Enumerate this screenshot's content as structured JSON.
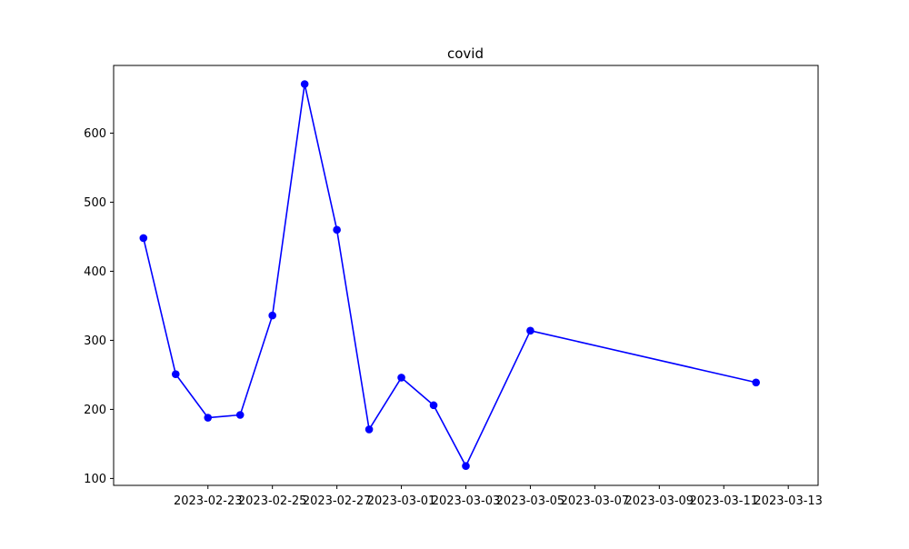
{
  "chart_data": {
    "type": "line",
    "title": "covid",
    "xlabel": "",
    "ylabel": "",
    "x_axis_type": "date",
    "xlim": [
      "2023-02-20T01:48:00",
      "2023-03-13T22:12:00"
    ],
    "ylim": [
      90,
      698
    ],
    "x_ticks": [
      "2023-02-23",
      "2023-02-25",
      "2023-02-27",
      "2023-03-01",
      "2023-03-03",
      "2023-03-05",
      "2023-03-07",
      "2023-03-09",
      "2023-03-11",
      "2023-03-13"
    ],
    "y_ticks": [
      100,
      200,
      300,
      400,
      500,
      600
    ],
    "grid": false,
    "series": [
      {
        "color": "#0000ff",
        "marker": "circle",
        "points": [
          {
            "x": "2023-02-21",
            "y": 448
          },
          {
            "x": "2023-02-22",
            "y": 251
          },
          {
            "x": "2023-02-23",
            "y": 188
          },
          {
            "x": "2023-02-24",
            "y": 192
          },
          {
            "x": "2023-02-25",
            "y": 336
          },
          {
            "x": "2023-02-26",
            "y": 671
          },
          {
            "x": "2023-02-27",
            "y": 460
          },
          {
            "x": "2023-02-28",
            "y": 171
          },
          {
            "x": "2023-03-01",
            "y": 246
          },
          {
            "x": "2023-03-02",
            "y": 206
          },
          {
            "x": "2023-03-03",
            "y": 118
          },
          {
            "x": "2023-03-05",
            "y": 314
          },
          {
            "x": "2023-03-12",
            "y": 239
          }
        ]
      }
    ]
  }
}
